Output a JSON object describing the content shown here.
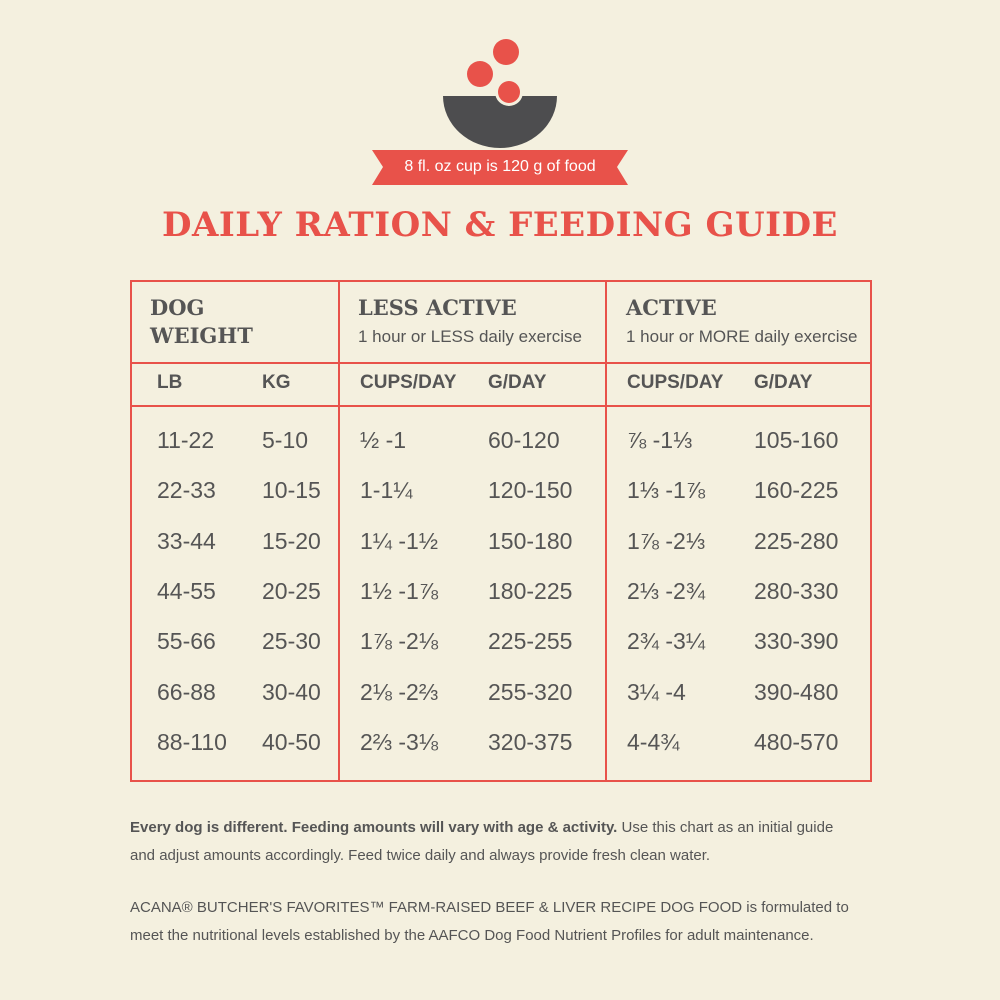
{
  "banner": "8 fl. oz cup is 120 g of food",
  "title": "DAILY RATION & FEEDING GUIDE",
  "table": {
    "groups": [
      {
        "title": "DOG WEIGHT"
      },
      {
        "title": "LESS ACTIVE",
        "subtitle": "1 hour or LESS daily exercise"
      },
      {
        "title": "ACTIVE",
        "subtitle": "1 hour or MORE daily exercise"
      }
    ],
    "columns": [
      "LB",
      "KG",
      "CUPS/DAY",
      "G/DAY",
      "CUPS/DAY",
      "G/DAY"
    ],
    "rows": [
      [
        "11-22",
        "5-10",
        "½ -1",
        "60-120",
        "⅞ -1⅓",
        "105-160"
      ],
      [
        "22-33",
        "10-15",
        "1-1¼",
        "120-150",
        "1⅓ -1⅞",
        "160-225"
      ],
      [
        "33-44",
        "15-20",
        "1¼ -1½",
        "150-180",
        "1⅞ -2⅓",
        "225-280"
      ],
      [
        "44-55",
        "20-25",
        "1½ -1⅞",
        "180-225",
        "2⅓ -2¾",
        "280-330"
      ],
      [
        "55-66",
        "25-30",
        "1⅞ -2⅛",
        "225-255",
        "2¾ -3¼",
        "330-390"
      ],
      [
        "66-88",
        "30-40",
        "2⅛ -2⅔",
        "255-320",
        "3¼ -4",
        "390-480"
      ],
      [
        "88-110",
        "40-50",
        "2⅔ -3⅛",
        "320-375",
        "4-4¾",
        "480-570"
      ]
    ]
  },
  "notes": [
    {
      "bold": "Every dog is different. Feeding amounts will vary with age & activity.",
      "text": "Use this chart as an initial guide and adjust amounts accordingly. Feed twice daily and always provide fresh clean water."
    },
    {
      "text": "ACANA® BUTCHER'S FAVORITES™ FARM-RAISED BEEF & LIVER RECIPE DOG FOOD is formulated to meet the nutritional levels established by the AAFCO Dog Food Nutrient Profiles for adult maintenance."
    }
  ]
}
